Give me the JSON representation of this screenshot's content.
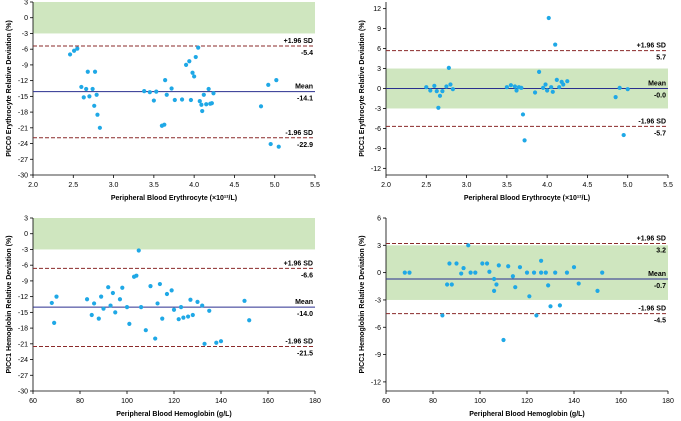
{
  "labels": {
    "upper": "+1.96 SD",
    "mean": "Mean",
    "lower": "-1.96 SD"
  },
  "colors": {
    "band": "#cfe6bf",
    "mean": "#2a2f8f",
    "sd": "#8a2a2a",
    "points": "#1fa8e6"
  },
  "chart_data": [
    {
      "type": "scatter",
      "ylabel": "PICC0 Erythrocyte Relative Deviation (%)",
      "xlabel": "Peripheral Blood Erythrocyte (×10¹²/L)",
      "xlim": [
        2.0,
        5.5
      ],
      "ylim": [
        -30,
        3
      ],
      "xticks": [
        2.0,
        2.5,
        3.0,
        3.5,
        4.0,
        4.5,
        5.0,
        5.5
      ],
      "xtick_labels": [
        "2.0",
        "2.5",
        "3.0",
        "3.5",
        "4.0",
        "4.5",
        "5.0",
        "5.5"
      ],
      "yticks": [
        3,
        0,
        -3,
        -6,
        -9,
        -12,
        -15,
        -18,
        -21,
        -24,
        -27,
        -30
      ],
      "band": [
        -3,
        3
      ],
      "mean": -14.1,
      "upper": -5.4,
      "lower": -22.9,
      "mean_label": "-14.1",
      "upper_label": "-5.4",
      "lower_label": "-22.9",
      "points": [
        [
          2.46,
          -7.0
        ],
        [
          2.51,
          -6.3
        ],
        [
          2.55,
          -5.9
        ],
        [
          2.6,
          -13.2
        ],
        [
          2.63,
          -15.2
        ],
        [
          2.66,
          -13.6
        ],
        [
          2.68,
          -10.3
        ],
        [
          2.7,
          -15.0
        ],
        [
          2.74,
          -13.6
        ],
        [
          2.76,
          -16.8
        ],
        [
          2.77,
          -10.3
        ],
        [
          2.79,
          -14.7
        ],
        [
          2.8,
          -18.5
        ],
        [
          2.83,
          -21.0
        ],
        [
          3.38,
          -14.0
        ],
        [
          3.45,
          -14.2
        ],
        [
          3.5,
          -15.8
        ],
        [
          3.53,
          -14.1
        ],
        [
          3.6,
          -20.6
        ],
        [
          3.63,
          -20.4
        ],
        [
          3.64,
          -11.9
        ],
        [
          3.66,
          -14.7
        ],
        [
          3.72,
          -13.5
        ],
        [
          3.76,
          -15.7
        ],
        [
          3.85,
          -15.6
        ],
        [
          3.9,
          -9.0
        ],
        [
          3.94,
          -8.3
        ],
        [
          3.96,
          -15.7
        ],
        [
          3.98,
          -10.5
        ],
        [
          4.0,
          -11.2
        ],
        [
          4.02,
          -7.5
        ],
        [
          4.05,
          -5.7
        ],
        [
          4.07,
          -15.9
        ],
        [
          4.09,
          -16.6
        ],
        [
          4.1,
          -17.8
        ],
        [
          4.12,
          -14.7
        ],
        [
          4.15,
          -16.5
        ],
        [
          4.18,
          -13.6
        ],
        [
          4.2,
          -16.4
        ],
        [
          4.22,
          -16.3
        ],
        [
          4.24,
          -14.4
        ],
        [
          4.83,
          -16.9
        ],
        [
          4.92,
          -12.8
        ],
        [
          4.95,
          -24.1
        ],
        [
          5.02,
          -11.9
        ],
        [
          5.05,
          -24.6
        ]
      ]
    },
    {
      "type": "scatter",
      "ylabel": "PICC1 Erythrocyte Relative Deviation (%)",
      "xlabel": "Peripheral Blood Erythrocyte (×10¹²/L)",
      "xlim": [
        2.0,
        5.5
      ],
      "ylim": [
        -13,
        13
      ],
      "xticks": [
        2.0,
        2.5,
        3.0,
        3.5,
        4.0,
        4.5,
        5.0,
        5.5
      ],
      "xtick_labels": [
        "2.0",
        "2.5",
        "3.0",
        "3.5",
        "4.0",
        "4.5",
        "5.0",
        "5.5"
      ],
      "yticks": [
        12,
        9,
        6,
        3,
        0,
        -3,
        -6,
        -9,
        -12
      ],
      "band": [
        -3,
        3
      ],
      "mean": -0.0,
      "upper": 5.7,
      "lower": -5.7,
      "mean_label": "-0.0",
      "upper_label": "5.7",
      "lower_label": "-5.7",
      "points": [
        [
          2.5,
          0.2
        ],
        [
          2.55,
          -0.3
        ],
        [
          2.6,
          0.4
        ],
        [
          2.63,
          -0.4
        ],
        [
          2.65,
          -2.9
        ],
        [
          2.67,
          -1.1
        ],
        [
          2.7,
          -0.4
        ],
        [
          2.75,
          0.3
        ],
        [
          2.78,
          3.1
        ],
        [
          2.8,
          0.6
        ],
        [
          2.83,
          -0.1
        ],
        [
          3.5,
          0.2
        ],
        [
          3.55,
          0.5
        ],
        [
          3.6,
          0.3
        ],
        [
          3.62,
          -0.3
        ],
        [
          3.65,
          0.2
        ],
        [
          3.68,
          0.1
        ],
        [
          3.7,
          -3.9
        ],
        [
          3.72,
          -7.8
        ],
        [
          3.85,
          -0.6
        ],
        [
          3.9,
          2.5
        ],
        [
          3.95,
          0.1
        ],
        [
          3.98,
          0.6
        ],
        [
          4.0,
          -0.3
        ],
        [
          4.02,
          10.6
        ],
        [
          4.05,
          0.2
        ],
        [
          4.07,
          -0.5
        ],
        [
          4.1,
          6.6
        ],
        [
          4.12,
          1.3
        ],
        [
          4.15,
          0.2
        ],
        [
          4.18,
          1.0
        ],
        [
          4.2,
          0.6
        ],
        [
          4.25,
          1.1
        ],
        [
          4.85,
          -1.3
        ],
        [
          4.9,
          0.1
        ],
        [
          4.95,
          -7.0
        ],
        [
          5.0,
          -0.1
        ]
      ]
    },
    {
      "type": "scatter",
      "ylabel": "PICC1 Hemoglobin Relative Deviation (%)",
      "xlabel": "Peripheral Blood Hemoglobin (g/L)",
      "xlim": [
        60,
        180
      ],
      "ylim": [
        -30,
        3
      ],
      "xticks": [
        60,
        80,
        100,
        120,
        140,
        160,
        180
      ],
      "xtick_labels": [
        "60",
        "80",
        "100",
        "120",
        "140",
        "160",
        "180"
      ],
      "yticks": [
        3,
        0,
        -3,
        -6,
        -9,
        -12,
        -15,
        -18,
        -21,
        -24,
        -27,
        -30
      ],
      "band": [
        -3,
        3
      ],
      "mean": -14.0,
      "upper": -6.6,
      "lower": -21.5,
      "mean_label": "-14.0",
      "upper_label": "-6.6",
      "lower_label": "-21.5",
      "points": [
        [
          68,
          -13.2
        ],
        [
          69,
          -17.0
        ],
        [
          70,
          -12.0
        ],
        [
          83,
          -12.5
        ],
        [
          85,
          -15.5
        ],
        [
          86,
          -13.3
        ],
        [
          88,
          -16.2
        ],
        [
          89,
          -12.0
        ],
        [
          90,
          -14.3
        ],
        [
          92,
          -10.2
        ],
        [
          93,
          -13.7
        ],
        [
          94,
          -11.3
        ],
        [
          95,
          -15.0
        ],
        [
          97,
          -12.5
        ],
        [
          98,
          -10.3
        ],
        [
          100,
          -14.0
        ],
        [
          101,
          -17.2
        ],
        [
          103,
          -8.2
        ],
        [
          104,
          -8.0
        ],
        [
          105,
          -3.2
        ],
        [
          106,
          -14.0
        ],
        [
          108,
          -18.4
        ],
        [
          110,
          -10.0
        ],
        [
          112,
          -20.0
        ],
        [
          113,
          -13.3
        ],
        [
          114,
          -9.6
        ],
        [
          115,
          -16.2
        ],
        [
          117,
          -11.5
        ],
        [
          119,
          -10.8
        ],
        [
          120,
          -14.5
        ],
        [
          122,
          -16.3
        ],
        [
          123,
          -14.0
        ],
        [
          124,
          -16.0
        ],
        [
          126,
          -15.8
        ],
        [
          127,
          -12.6
        ],
        [
          128,
          -15.5
        ],
        [
          130,
          -13.0
        ],
        [
          132,
          -13.7
        ],
        [
          133,
          -21.0
        ],
        [
          135,
          -14.7
        ],
        [
          138,
          -20.8
        ],
        [
          140,
          -20.5
        ],
        [
          150,
          -12.8
        ],
        [
          152,
          -16.5
        ]
      ]
    },
    {
      "type": "scatter",
      "ylabel": "PICC1 Hemoglobin Relative Deviation (%)",
      "xlabel": "Peripheral Blood Hemoglobin (g/L)",
      "xlim": [
        60,
        180
      ],
      "ylim": [
        -13,
        6
      ],
      "xticks": [
        60,
        80,
        100,
        120,
        140,
        160,
        180
      ],
      "xtick_labels": [
        "60",
        "80",
        "100",
        "120",
        "140",
        "160",
        "180"
      ],
      "yticks": [
        6,
        3,
        0,
        -3,
        -6,
        -9,
        -12
      ],
      "band": [
        -3,
        3
      ],
      "mean": -0.7,
      "upper": 3.2,
      "lower": -4.5,
      "mean_label": "-0.7",
      "upper_label": "3.2",
      "lower_label": "-4.5",
      "points": [
        [
          68,
          0.0
        ],
        [
          70,
          0.0
        ],
        [
          84,
          -4.7
        ],
        [
          86,
          -1.3
        ],
        [
          87,
          1.0
        ],
        [
          88,
          -1.3
        ],
        [
          90,
          1.0
        ],
        [
          92,
          -0.1
        ],
        [
          93,
          0.5
        ],
        [
          95,
          3.0
        ],
        [
          96,
          0.0
        ],
        [
          98,
          0.0
        ],
        [
          101,
          1.0
        ],
        [
          103,
          1.0
        ],
        [
          104,
          0.1
        ],
        [
          106,
          -0.7
        ],
        [
          106,
          -2.0
        ],
        [
          107,
          -1.3
        ],
        [
          108,
          0.8
        ],
        [
          110,
          -7.4
        ],
        [
          112,
          0.7
        ],
        [
          114,
          -0.4
        ],
        [
          115,
          -1.6
        ],
        [
          117,
          0.6
        ],
        [
          120,
          0.0
        ],
        [
          121,
          -2.6
        ],
        [
          123,
          0.0
        ],
        [
          124,
          -4.7
        ],
        [
          126,
          1.3
        ],
        [
          126,
          0.0
        ],
        [
          128,
          0.0
        ],
        [
          129,
          -1.4
        ],
        [
          130,
          -3.7
        ],
        [
          132,
          0.0
        ],
        [
          134,
          -3.6
        ],
        [
          137,
          0.0
        ],
        [
          140,
          0.6
        ],
        [
          142,
          -1.2
        ],
        [
          150,
          -2.0
        ],
        [
          152,
          0.0
        ]
      ]
    }
  ]
}
